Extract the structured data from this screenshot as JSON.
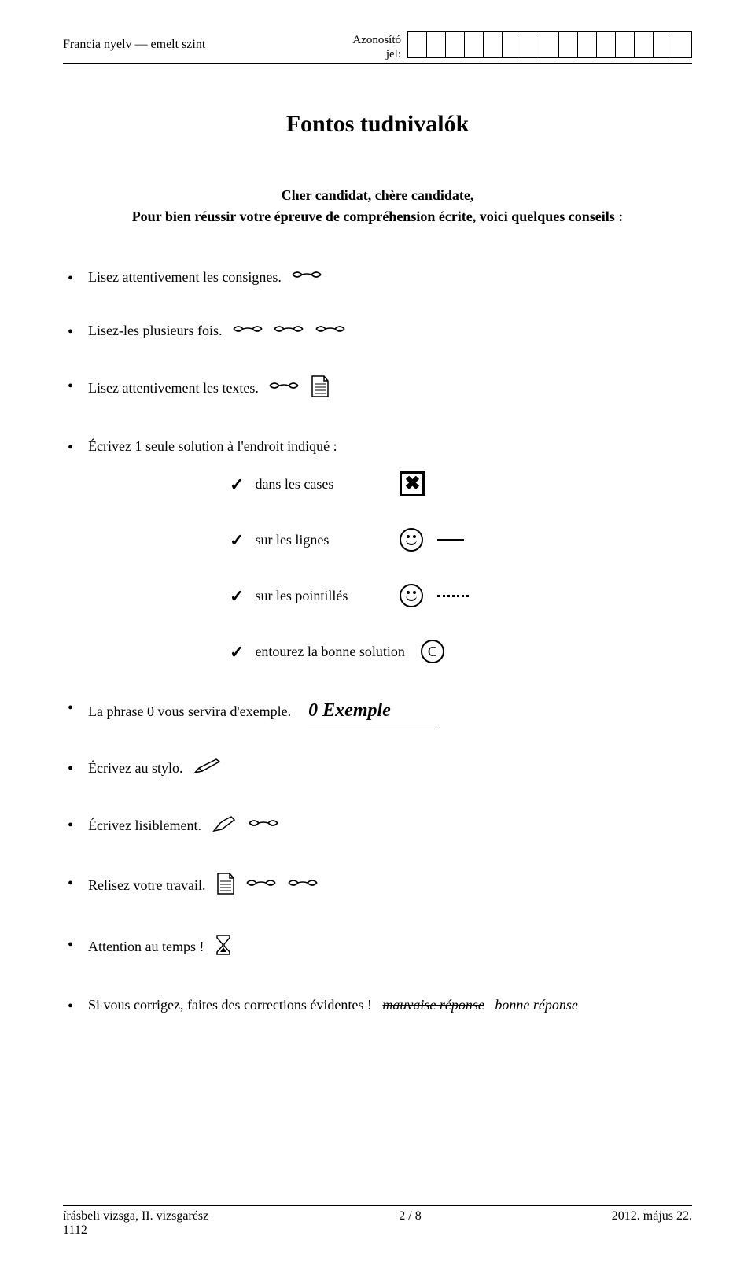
{
  "header": {
    "left": "Francia nyelv — emelt szint",
    "id_label_line1": "Azonosító",
    "id_label_line2": "jel:",
    "id_box_count": 15
  },
  "title": "Fontos tudnivalók",
  "intro": {
    "line1": "Cher candidat, chère candidate,",
    "line2": "Pour bien réussir votre épreuve de compréhension écrite, voici quelques conseils :"
  },
  "bullets": {
    "b1": "Lisez attentivement les consignes.",
    "b2": "Lisez-les plusieurs fois.",
    "b3": "Lisez attentivement les textes.",
    "b4_prefix": "Écrivez ",
    "b4_underlined": "1 seule",
    "b4_suffix": " solution à l'endroit indiqué :",
    "sub1": "dans les cases",
    "sub2": "sur les lignes",
    "sub3": "sur les pointillés",
    "sub4": "entourez la bonne solution",
    "circle_letter": "C",
    "b5_pre": "La phrase 0 vous servira d'exemple.",
    "b5_exemple": "0 Exemple",
    "b6": "Écrivez au stylo.",
    "b7": "Écrivez lisiblement.",
    "b8": "Relisez votre travail.",
    "b9": "Attention au temps !",
    "b10_pre": "Si vous corrigez, faites des corrections évidentes !",
    "b10_strike": "mauvaise réponse",
    "b10_good": "bonne réponse"
  },
  "footer": {
    "left1": "írásbeli vizsga, II. vizsgarész",
    "left2": "1112",
    "center": "2 / 8",
    "right": "2012. május 22."
  },
  "icons": {
    "x_mark": "✖"
  }
}
